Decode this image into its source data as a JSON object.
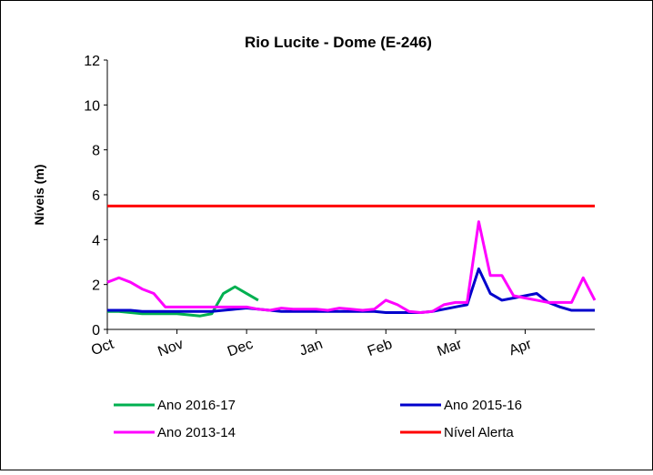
{
  "chart_data": {
    "type": "line",
    "title": "Rio Lucite - Dome (E-246)",
    "y_label": "Níveis (m)",
    "categories": [
      "Oct",
      null,
      null,
      null,
      null,
      null,
      "Nov",
      null,
      null,
      null,
      null,
      null,
      "Dec",
      null,
      null,
      null,
      null,
      null,
      "Jan",
      null,
      null,
      null,
      null,
      null,
      "Feb",
      null,
      null,
      null,
      null,
      null,
      "Mar",
      null,
      null,
      null,
      null,
      null,
      "Apr",
      null,
      null,
      null,
      null,
      null,
      null
    ],
    "ylim": [
      0,
      12
    ],
    "yticks": [
      0,
      2,
      4,
      6,
      8,
      10,
      12
    ],
    "legend_position": "bottom",
    "series": [
      {
        "name": "Ano 2016-17",
        "color": "#00b050",
        "values": [
          0.8,
          0.8,
          0.75,
          0.7,
          0.7,
          0.7,
          0.7,
          0.65,
          0.6,
          0.7,
          1.6,
          1.9,
          1.6,
          1.3,
          null,
          null,
          null,
          null,
          null,
          null,
          null,
          null,
          null,
          null,
          null,
          null,
          null,
          null,
          null,
          null,
          null,
          null,
          null,
          null,
          null,
          null,
          null,
          null,
          null,
          null,
          null,
          null,
          null
        ]
      },
      {
        "name": "Ano 2015-16",
        "color": "#0000cc",
        "values": [
          0.85,
          0.85,
          0.85,
          0.8,
          0.8,
          0.8,
          0.8,
          0.8,
          0.8,
          0.8,
          0.85,
          0.9,
          0.95,
          0.9,
          0.85,
          0.8,
          0.8,
          0.8,
          0.8,
          0.8,
          0.8,
          0.8,
          0.8,
          0.8,
          0.75,
          0.75,
          0.75,
          0.75,
          0.8,
          0.9,
          1.0,
          1.1,
          2.7,
          1.6,
          1.3,
          1.4,
          1.5,
          1.6,
          1.2,
          1.0,
          0.85,
          0.85,
          0.85
        ]
      },
      {
        "name": "Ano 2013-14",
        "color": "#ff00ff",
        "values": [
          2.1,
          2.3,
          2.1,
          1.8,
          1.6,
          1.0,
          1.0,
          1.0,
          1.0,
          1.0,
          1.0,
          1.0,
          1.0,
          0.9,
          0.85,
          0.95,
          0.9,
          0.9,
          0.9,
          0.85,
          0.95,
          0.9,
          0.85,
          0.9,
          1.3,
          1.1,
          0.8,
          0.75,
          0.8,
          1.1,
          1.2,
          1.2,
          4.8,
          2.4,
          2.4,
          1.5,
          1.4,
          1.3,
          1.2,
          1.2,
          1.2,
          2.3,
          1.3
        ]
      },
      {
        "name": "Nível Alerta",
        "color": "#ff0000",
        "values": [
          5.5,
          5.5,
          5.5,
          5.5,
          5.5,
          5.5,
          5.5,
          5.5,
          5.5,
          5.5,
          5.5,
          5.5,
          5.5,
          5.5,
          5.5,
          5.5,
          5.5,
          5.5,
          5.5,
          5.5,
          5.5,
          5.5,
          5.5,
          5.5,
          5.5,
          5.5,
          5.5,
          5.5,
          5.5,
          5.5,
          5.5,
          5.5,
          5.5,
          5.5,
          5.5,
          5.5,
          5.5,
          5.5,
          5.5,
          5.5,
          5.5,
          5.5,
          5.5
        ]
      }
    ]
  }
}
